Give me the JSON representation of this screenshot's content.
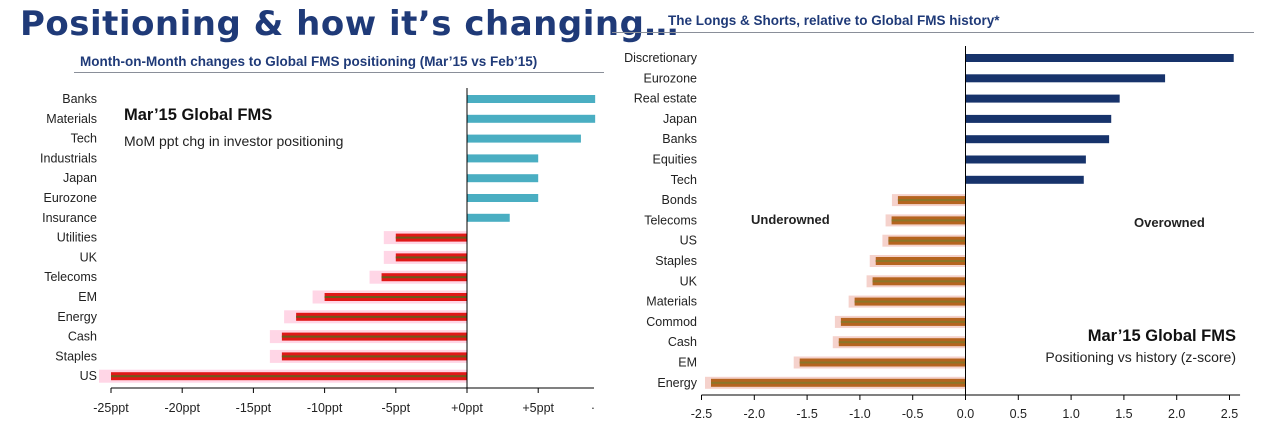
{
  "page": {
    "main_title": "Positioning & how it’s changing…",
    "left_subtitle": "Month-on-Month changes to Global FMS positioning (Mar’15 vs Feb’15)",
    "right_title": "The Longs & Shorts, relative to Global FMS history*"
  },
  "colors": {
    "title": "#1f3a78",
    "left_positive": "#4aaec2",
    "left_negative_fill": "#e01818",
    "left_negative_stripe": "#6e5a1a",
    "left_negative_halo": "#ffd6e6",
    "right_positive": "#17336b",
    "right_negative_fill": "#b5641f",
    "right_negative_stripe": "#8c7628",
    "right_negative_halo": "#f5d2cc"
  },
  "chart_data": [
    {
      "type": "bar",
      "orientation": "horizontal",
      "title": "Mar’15 Global FMS",
      "subtitle": "MoM ppt chg in investor positioning",
      "categories": [
        "Banks",
        "Materials",
        "Tech",
        "Industrials",
        "Japan",
        "Eurozone",
        "Insurance",
        "Utilities",
        "UK",
        "Telecoms",
        "EM",
        "Energy",
        "Cash",
        "Staples",
        "US"
      ],
      "values": [
        9,
        9,
        8,
        5,
        5,
        5,
        3,
        -5,
        -5,
        -6,
        -10,
        -12,
        -13,
        -13,
        -25
      ],
      "xlim": [
        -25,
        9
      ],
      "xticks": [
        -25,
        -20,
        -15,
        -10,
        -5,
        0,
        5
      ],
      "xtick_labels": [
        "-25ppt",
        "-20ppt",
        "-15ppt",
        "-10ppt",
        "-5ppt",
        "+0ppt",
        "+5ppt"
      ],
      "trailing_tick_label": "·",
      "xlabel": "",
      "ylabel": "",
      "legend": "none"
    },
    {
      "type": "bar",
      "orientation": "horizontal",
      "title": "Mar’15 Global FMS",
      "subtitle": "Positioning vs history (z-score)",
      "categories": [
        "Discretionary",
        "Eurozone",
        "Real estate",
        "Japan",
        "Banks",
        "Equities",
        "Tech",
        "Bonds",
        "Telecoms",
        "US",
        "Staples",
        "UK",
        "Materials",
        "Commod",
        "Cash",
        "EM",
        "Energy"
      ],
      "values": [
        2.54,
        1.89,
        1.46,
        1.38,
        1.36,
        1.14,
        1.12,
        -0.64,
        -0.7,
        -0.73,
        -0.85,
        -0.88,
        -1.05,
        -1.18,
        -1.2,
        -1.57,
        -2.41
      ],
      "xlim": [
        -2.5,
        2.6
      ],
      "xticks": [
        -2.5,
        -2.0,
        -1.5,
        -1.0,
        -0.5,
        0.0,
        0.5,
        1.0,
        1.5,
        2.0,
        2.5
      ],
      "xtick_labels": [
        "-2.5",
        "-2.0",
        "-1.5",
        "-1.0",
        "-0.5",
        "0.0",
        "0.5",
        "1.0",
        "1.5",
        "2.0",
        "2.5"
      ],
      "annotations": [
        "Underowned",
        "Overowned"
      ],
      "xlabel": "",
      "ylabel": "",
      "legend": "none"
    }
  ]
}
